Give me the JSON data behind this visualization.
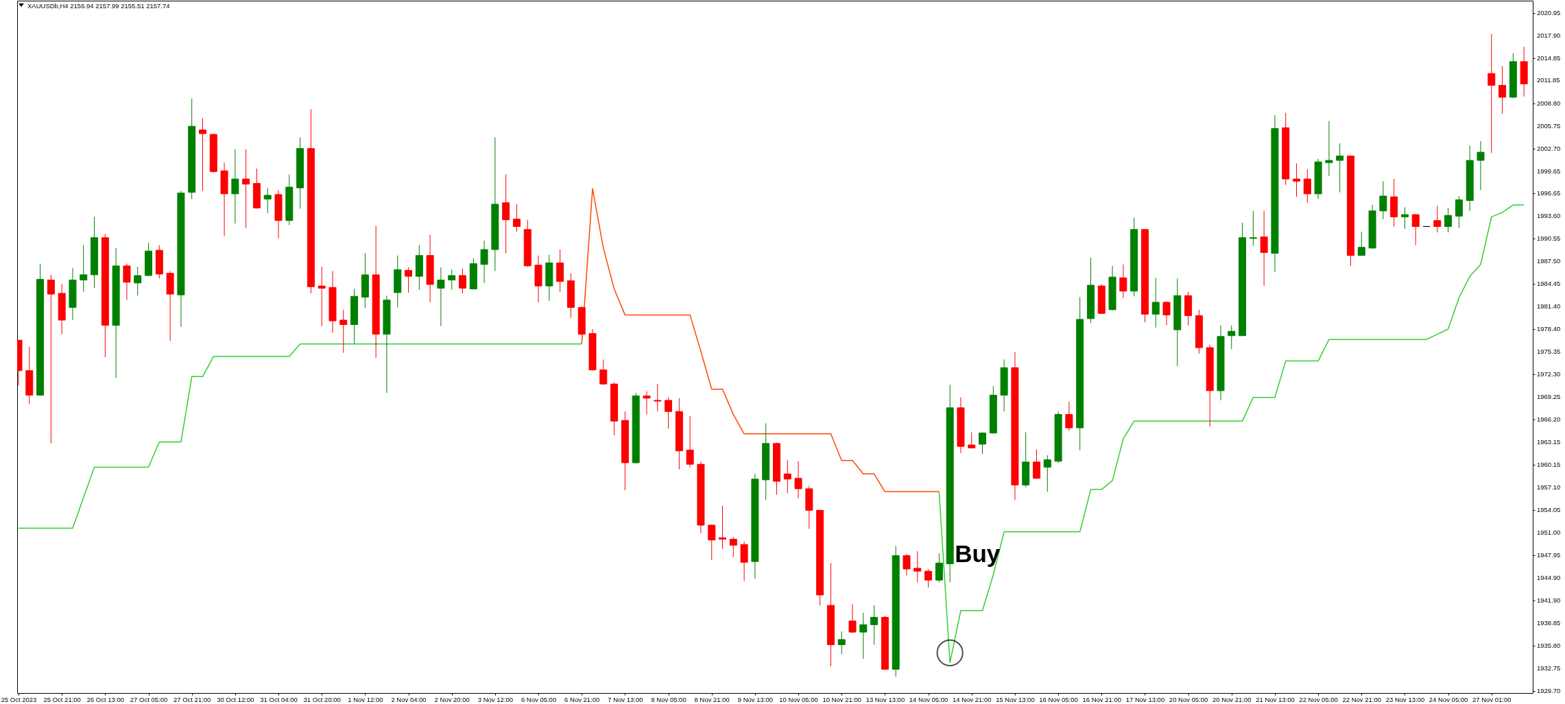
{
  "chart_data": {
    "type": "candlestick",
    "title": "XAUUSDb,H4 2156.94 2157.99 2155.51 2157.74",
    "categories": [
      "25 Oct 2023",
      null,
      null,
      null,
      "25 Oct 21:00",
      null,
      null,
      null,
      "26 Oct 13:00",
      null,
      null,
      null,
      "27 Oct 05:00",
      null,
      null,
      null,
      "27 Oct 21:00",
      null,
      null,
      null,
      "30 Oct 12:00",
      null,
      null,
      null,
      "31 Oct 04:00",
      null,
      null,
      null,
      "31 Oct 20:00",
      null,
      null,
      null,
      "1 Nov 12:00",
      null,
      null,
      null,
      "2 Nov 04:00",
      null,
      null,
      null,
      "2 Nov 20:00",
      null,
      null,
      null,
      "3 Nov 12:00",
      null,
      null,
      null,
      "6 Nov 05:00",
      null,
      null,
      null,
      "6 Nov 21:00",
      null,
      null,
      null,
      "7 Nov 13:00",
      null,
      null,
      null,
      "8 Nov 05:00",
      null,
      null,
      null,
      "8 Nov 21:00",
      null,
      null,
      null,
      "9 Nov 13:00",
      null,
      null,
      null,
      "10 Nov 05:00",
      null,
      null,
      null,
      "10 Nov 21:00",
      null,
      null,
      null,
      "13 Nov 13:00",
      null,
      null,
      null,
      "14 Nov 05:00",
      null,
      null,
      null,
      "14 Nov 21:00",
      null,
      null,
      null,
      "15 Nov 13:00",
      null,
      null,
      null,
      "16 Nov 05:00",
      null,
      null,
      null,
      "16 Nov 21:00",
      null,
      null,
      null,
      "17 Nov 13:00",
      null,
      null,
      null,
      "20 Nov 05:00",
      null,
      null,
      null,
      "20 Nov 21:00",
      null,
      null,
      null,
      "21 Nov 13:00",
      null,
      null,
      null,
      "22 Nov 05:00",
      null,
      null,
      null,
      "22 Nov 21:00",
      null,
      null,
      null,
      "23 Nov 13:00",
      null,
      null,
      null,
      "24 Nov 05:00",
      null,
      null,
      null,
      "27 Nov 01:00",
      null,
      null,
      null
    ],
    "ohlc": [
      [
        1976.9,
        1976.9,
        1970.8,
        1972.8
      ],
      [
        1972.8,
        1976.0,
        1968.3,
        1969.5
      ],
      [
        1969.5,
        1987.2,
        1969.4,
        1985.1
      ],
      [
        1985.0,
        1985.7,
        1963.0,
        1983.1
      ],
      [
        1983.2,
        1984.5,
        1977.7,
        1979.6
      ],
      [
        1981.3,
        1986.6,
        1979.6,
        1985.0
      ],
      [
        1985.0,
        1989.7,
        1983.4,
        1985.7
      ],
      [
        1985.7,
        1993.5,
        1983.9,
        1990.7
      ],
      [
        1990.7,
        1991.2,
        1974.6,
        1978.9
      ],
      [
        1978.9,
        1989.3,
        1971.8,
        1986.9
      ],
      [
        1986.9,
        1987.2,
        1982.3,
        1984.7
      ],
      [
        1984.6,
        1986.8,
        1982.9,
        1985.6
      ],
      [
        1985.6,
        1990.0,
        1985.5,
        1988.9
      ],
      [
        1989.0,
        1989.7,
        1985.2,
        1985.8
      ],
      [
        1985.9,
        1986.2,
        1976.8,
        1983.1
      ],
      [
        1983.0,
        1997.0,
        1978.7,
        1996.7
      ],
      [
        1996.8,
        2009.4,
        1995.9,
        2005.7
      ],
      [
        2005.2,
        2006.8,
        1997.0,
        2004.7
      ],
      [
        2004.6,
        2004.7,
        1999.4,
        1999.6
      ],
      [
        1999.7,
        2000.8,
        1990.9,
        1996.6
      ],
      [
        1996.6,
        2002.6,
        1992.6,
        1998.6
      ],
      [
        1998.6,
        2002.6,
        1992.0,
        1997.9
      ],
      [
        1998.0,
        2000.0,
        1994.6,
        1994.7
      ],
      [
        1995.9,
        1997.4,
        1994.0,
        1996.4
      ],
      [
        1996.5,
        1997.1,
        1990.6,
        1993.0
      ],
      [
        1993.0,
        1999.2,
        1992.4,
        1997.5
      ],
      [
        1997.4,
        2004.2,
        1994.6,
        2002.7
      ],
      [
        2002.7,
        2008.0,
        1983.2,
        1984.1
      ],
      [
        1984.2,
        1986.8,
        1978.8,
        1983.9
      ],
      [
        1984.0,
        1986.2,
        1977.9,
        1979.5
      ],
      [
        1979.6,
        1981.0,
        1975.2,
        1979.0
      ],
      [
        1979.0,
        1983.8,
        1976.4,
        1982.8
      ],
      [
        1982.7,
        1988.6,
        1981.2,
        1985.7
      ],
      [
        1985.7,
        1992.3,
        1974.5,
        1977.7
      ],
      [
        1977.7,
        1982.9,
        1969.8,
        1982.3
      ],
      [
        1983.3,
        1988.3,
        1981.3,
        1986.4
      ],
      [
        1986.3,
        1986.7,
        1983.3,
        1985.5
      ],
      [
        1985.5,
        1989.7,
        1983.7,
        1988.3
      ],
      [
        1988.3,
        1991.1,
        1982.0,
        1984.4
      ],
      [
        1983.9,
        1986.7,
        1978.8,
        1985.0
      ],
      [
        1985.0,
        1986.4,
        1983.7,
        1985.6
      ],
      [
        1985.6,
        1986.5,
        1983.2,
        1983.9
      ],
      [
        1983.8,
        1987.9,
        1983.7,
        1987.2
      ],
      [
        1987.1,
        1990.3,
        1984.6,
        1989.1
      ],
      [
        1989.1,
        2004.2,
        1986.2,
        1995.2
      ],
      [
        1995.4,
        1999.2,
        1988.6,
        1993.1
      ],
      [
        1993.2,
        1995.2,
        1991.5,
        1992.2
      ],
      [
        1991.8,
        1993.1,
        1986.8,
        1986.9
      ],
      [
        1987.0,
        1988.3,
        1982.0,
        1984.2
      ],
      [
        1984.2,
        1988.4,
        1982.2,
        1987.3
      ],
      [
        1987.3,
        1989.1,
        1983.4,
        1984.8
      ],
      [
        1984.9,
        1985.9,
        1979.9,
        1981.3
      ],
      [
        1981.3,
        1981.5,
        1977.6,
        1977.7
      ],
      [
        1977.8,
        1978.4,
        1972.8,
        1972.9
      ],
      [
        1972.9,
        1974.3,
        1970.9,
        1971.0
      ],
      [
        1971.0,
        1971.2,
        1964.1,
        1966.0
      ],
      [
        1966.1,
        1967.3,
        1956.7,
        1960.4
      ],
      [
        1960.4,
        1969.8,
        1960.3,
        1969.4
      ],
      [
        1969.4,
        1970.0,
        1966.9,
        1969.1
      ],
      [
        1968.8,
        1971.0,
        1967.3,
        1968.7
      ],
      [
        1968.8,
        1969.2,
        1965.0,
        1967.3
      ],
      [
        1967.3,
        1969.1,
        1959.5,
        1962.0
      ],
      [
        1962.1,
        1966.7,
        1959.8,
        1960.2
      ],
      [
        1960.2,
        1960.6,
        1950.9,
        1952.0
      ],
      [
        1952.0,
        1952.1,
        1947.3,
        1950.0
      ],
      [
        1950.3,
        1954.6,
        1948.8,
        1950.1
      ],
      [
        1950.1,
        1950.4,
        1947.7,
        1949.3
      ],
      [
        1949.4,
        1949.8,
        1944.5,
        1947.0
      ],
      [
        1947.1,
        1958.9,
        1944.8,
        1958.2
      ],
      [
        1958.1,
        1965.7,
        1955.4,
        1963.0
      ],
      [
        1963.0,
        1963.1,
        1956.1,
        1957.9
      ],
      [
        1958.9,
        1960.8,
        1956.3,
        1958.2
      ],
      [
        1958.3,
        1960.6,
        1955.6,
        1956.9
      ],
      [
        1956.9,
        1957.3,
        1951.5,
        1954.0
      ],
      [
        1954.0,
        1954.1,
        1941.2,
        1942.6
      ],
      [
        1941.2,
        1946.9,
        1933.0,
        1935.9
      ],
      [
        1935.9,
        1937.7,
        1934.6,
        1936.6
      ],
      [
        1939.1,
        1941.4,
        1937.5,
        1937.6
      ],
      [
        1937.6,
        1940.2,
        1934.0,
        1938.6
      ],
      [
        1938.6,
        1941.2,
        1935.9,
        1939.6
      ],
      [
        1939.6,
        1939.8,
        1932.5,
        1932.6
      ],
      [
        1932.6,
        1949.2,
        1931.6,
        1947.9
      ],
      [
        1947.9,
        1948.1,
        1945.2,
        1946.1
      ],
      [
        1946.2,
        1948.5,
        1944.3,
        1945.8
      ],
      [
        1945.8,
        1946.1,
        1943.6,
        1944.6
      ],
      [
        1944.6,
        1948.2,
        1944.3,
        1946.9
      ],
      [
        1946.8,
        1970.9,
        1944.3,
        1967.8
      ],
      [
        1967.8,
        1969.2,
        1961.7,
        1962.6
      ],
      [
        1962.8,
        1964.5,
        1962.3,
        1962.4
      ],
      [
        1962.9,
        1964.5,
        1961.6,
        1964.4
      ],
      [
        1964.4,
        1970.7,
        1964.3,
        1969.5
      ],
      [
        1969.5,
        1974.3,
        1967.3,
        1973.2
      ],
      [
        1973.2,
        1975.3,
        1955.4,
        1957.4
      ],
      [
        1957.4,
        1964.5,
        1957.1,
        1960.5
      ],
      [
        1960.5,
        1962.2,
        1958.2,
        1958.3
      ],
      [
        1959.8,
        1961.4,
        1956.5,
        1960.8
      ],
      [
        1960.6,
        1967.3,
        1960.4,
        1966.9
      ],
      [
        1966.9,
        1968.6,
        1964.7,
        1965.1
      ],
      [
        1965.1,
        1982.7,
        1962.1,
        1979.7
      ],
      [
        1979.8,
        1988.0,
        1979.2,
        1984.3
      ],
      [
        1984.2,
        1984.4,
        1980.5,
        1980.5
      ],
      [
        1981.0,
        1986.9,
        1980.9,
        1985.4
      ],
      [
        1985.3,
        1987.1,
        1982.6,
        1983.5
      ],
      [
        1983.5,
        1993.4,
        1982.8,
        1991.8
      ],
      [
        1991.8,
        1991.8,
        1979.3,
        1980.4
      ],
      [
        1980.4,
        1985.3,
        1978.6,
        1982.0
      ],
      [
        1982.0,
        1982.1,
        1978.9,
        1980.3
      ],
      [
        1978.3,
        1985.2,
        1973.4,
        1982.9
      ],
      [
        1982.9,
        1983.4,
        1978.9,
        1980.2
      ],
      [
        1980.2,
        1981.0,
        1975.1,
        1975.9
      ],
      [
        1975.9,
        1976.3,
        1965.3,
        1970.1
      ],
      [
        1970.1,
        1978.9,
        1968.8,
        1977.4
      ],
      [
        1977.5,
        1978.9,
        1975.7,
        1978.1
      ],
      [
        1977.5,
        1992.7,
        1977.5,
        1990.7
      ],
      [
        1990.6,
        1994.3,
        1989.6,
        1990.7
      ],
      [
        1990.8,
        1994.3,
        1984.2,
        1988.7
      ],
      [
        1988.6,
        2007.2,
        1986.1,
        2005.4
      ],
      [
        2005.5,
        2007.5,
        1997.8,
        1998.6
      ],
      [
        1998.6,
        2000.7,
        1996.2,
        1998.3
      ],
      [
        1998.6,
        1999.9,
        1995.4,
        1996.6
      ],
      [
        1996.6,
        2001.3,
        1995.9,
        2000.9
      ],
      [
        2000.8,
        2006.4,
        1999.0,
        2001.1
      ],
      [
        2001.1,
        2003.4,
        1996.8,
        2001.7
      ],
      [
        2001.7,
        2001.7,
        1986.9,
        1988.3
      ],
      [
        1988.3,
        1991.5,
        1988.3,
        1989.4
      ],
      [
        1989.3,
        1995.1,
        1989.2,
        1994.3
      ],
      [
        1994.3,
        1998.3,
        1993.2,
        1996.3
      ],
      [
        1996.2,
        1998.6,
        1992.2,
        1993.5
      ],
      [
        1993.5,
        1994.8,
        1991.9,
        1993.8
      ],
      [
        1993.8,
        1993.9,
        1989.7,
        1992.2
      ],
      [
        1992.2,
        1992.2,
        1992.2,
        1992.2
      ],
      [
        1993.0,
        1995.0,
        1991.4,
        1992.2
      ],
      [
        1992.2,
        1994.7,
        1991.4,
        1993.7
      ],
      [
        1993.6,
        1996.3,
        1992.0,
        1995.8
      ],
      [
        1995.7,
        2003.1,
        1994.3,
        2001.1
      ],
      [
        2001.1,
        2003.7,
        1997.1,
        2002.2
      ],
      [
        2012.8,
        2018.1,
        2002.1,
        2011.2
      ],
      [
        2011.2,
        2013.8,
        2007.4,
        2009.6
      ],
      [
        2009.6,
        2015.5,
        2009.5,
        2014.4
      ],
      [
        2014.4,
        2016.4,
        2009.7,
        2011.4
      ]
    ],
    "colors": [
      "#ff0000",
      "#ff0000",
      "#008000",
      "#ff0000",
      "#ff0000",
      "#008000",
      "#008000",
      "#008000",
      "#ff0000",
      "#008000",
      "#ff0000",
      "#008000",
      "#008000",
      "#ff0000",
      "#ff0000",
      "#008000",
      "#008000",
      "#ff0000",
      "#ff0000",
      "#ff0000",
      "#008000",
      "#ff0000",
      "#ff0000",
      "#008000",
      "#ff0000",
      "#008000",
      "#008000",
      "#ff0000",
      "#ff0000",
      "#ff0000",
      "#ff0000",
      "#008000",
      "#008000",
      "#ff0000",
      "#008000",
      "#008000",
      "#ff0000",
      "#008000",
      "#ff0000",
      "#008000",
      "#008000",
      "#ff0000",
      "#008000",
      "#008000",
      "#008000",
      "#ff0000",
      "#ff0000",
      "#ff0000",
      "#ff0000",
      "#008000",
      "#ff0000",
      "#ff0000",
      "#ff0000",
      "#ff0000",
      "#ff0000",
      "#ff0000",
      "#ff0000",
      "#008000",
      "#ff0000",
      "#ff0000",
      "#ff0000",
      "#ff0000",
      "#ff0000",
      "#ff0000",
      "#ff0000",
      "#ff0000",
      "#ff0000",
      "#ff0000",
      "#008000",
      "#008000",
      "#ff0000",
      "#ff0000",
      "#ff0000",
      "#ff0000",
      "#ff0000",
      "#ff0000",
      "#008000",
      "#ff0000",
      "#008000",
      "#008000",
      "#ff0000",
      "#008000",
      "#ff0000",
      "#ff0000",
      "#ff0000",
      "#008000",
      "#008000",
      "#ff0000",
      "#ff0000",
      "#008000",
      "#008000",
      "#008000",
      "#ff0000",
      "#008000",
      "#ff0000",
      "#008000",
      "#008000",
      "#ff0000",
      "#008000",
      "#008000",
      "#ff0000",
      "#008000",
      "#ff0000",
      "#008000",
      "#ff0000",
      "#008000",
      "#ff0000",
      "#008000",
      "#ff0000",
      "#ff0000",
      "#ff0000",
      "#008000",
      "#008000",
      "#008000",
      "#008000",
      "#ff0000",
      "#008000",
      "#ff0000",
      "#ff0000",
      "#ff0000",
      "#008000",
      "#008000",
      "#008000",
      "#ff0000",
      "#008000",
      "#008000",
      "#008000",
      "#ff0000",
      "#008000",
      "#ff0000",
      "#000000",
      "#ff0000",
      "#008000",
      "#008000",
      "#008000",
      "#008000",
      "#ff0000",
      "#ff0000",
      "#008000",
      "#ff0000"
    ],
    "series": [
      {
        "type": "line",
        "color": "#32cd32",
        "values": [
          1951.6,
          1951.6,
          1951.6,
          1951.6,
          1951.6,
          1951.6,
          1955.7,
          1959.8,
          1959.8,
          1959.8,
          1959.8,
          1959.8,
          1959.8,
          1963.2,
          1963.2,
          1963.2,
          1972.0,
          1972.0,
          1974.7,
          1974.7,
          1974.7,
          1974.7,
          1974.7,
          1974.7,
          1974.7,
          1974.7,
          1976.4,
          1976.4,
          1976.4,
          1976.4,
          1976.4,
          1976.4,
          1976.4,
          1976.4,
          1976.4,
          1976.4,
          1976.4,
          1976.4,
          1976.4,
          1976.4,
          1976.4,
          1976.4,
          1976.4,
          1976.4,
          1976.4,
          1976.4,
          1976.4,
          1976.4,
          1976.4,
          1976.4,
          1976.4,
          1976.4,
          1976.4,
          null,
          null,
          null,
          null,
          null,
          null,
          null,
          null,
          null,
          null,
          null,
          null,
          null,
          null,
          null,
          null,
          null,
          null,
          null,
          null,
          null,
          null,
          null,
          null,
          null,
          null,
          null,
          null,
          null,
          null,
          null,
          null,
          1956.5,
          1933.5,
          1940.5,
          1940.5,
          1940.5,
          1945.3,
          1951.1,
          1951.1,
          1951.1,
          1951.1,
          1951.1,
          1951.1,
          1951.1,
          1951.1,
          1956.8,
          1956.8,
          1958.0,
          1963.6,
          1966.0,
          1966.0,
          1966.0,
          1966.0,
          1966.0,
          1966.0,
          1966.0,
          1966.0,
          1966.0,
          1966.0,
          1966.0,
          1969.2,
          1969.2,
          1969.2,
          1974.1,
          1974.1,
          1974.1,
          1974.1,
          1977.0,
          1977.0,
          1977.0,
          1977.0,
          1977.0,
          1977.0,
          1977.0,
          1977.0,
          1977.0,
          1977.0,
          1977.7,
          1978.4,
          1982.6,
          1985.5,
          1987.1,
          1993.5,
          1994.1,
          1995.1,
          1995.1
        ]
      },
      {
        "type": "line",
        "color": "#ff4500",
        "values": [
          null,
          null,
          null,
          null,
          null,
          null,
          null,
          null,
          null,
          null,
          null,
          null,
          null,
          null,
          null,
          null,
          null,
          null,
          null,
          null,
          null,
          null,
          null,
          null,
          null,
          null,
          null,
          null,
          null,
          null,
          null,
          null,
          null,
          null,
          null,
          null,
          null,
          null,
          null,
          null,
          null,
          null,
          null,
          null,
          null,
          null,
          null,
          null,
          null,
          null,
          null,
          null,
          1976.4,
          1997.3,
          1989.3,
          1983.8,
          1980.3,
          1980.3,
          1980.3,
          1980.3,
          1980.3,
          1980.3,
          1980.3,
          1975.4,
          1970.3,
          1970.3,
          1966.9,
          1964.3,
          1964.3,
          1964.3,
          1964.3,
          1964.3,
          1964.3,
          1964.3,
          1964.3,
          1964.3,
          1960.7,
          1960.7,
          1958.9,
          1958.9,
          1956.5,
          1956.5,
          1956.5,
          1956.5,
          1956.5,
          1956.5,
          null,
          null,
          null,
          null,
          null,
          null,
          null,
          null,
          null,
          null,
          null,
          null,
          null,
          null,
          null,
          null,
          null,
          null,
          null,
          null,
          null,
          null,
          null,
          null,
          null,
          null,
          null,
          null,
          null,
          null,
          null,
          null,
          null,
          null,
          null,
          null,
          null,
          null,
          null,
          null,
          null,
          null,
          null,
          null,
          null,
          null,
          null,
          null,
          null,
          null,
          null,
          null,
          null,
          null
        ]
      },
      {
        "type": "scatter",
        "color": "#000000",
        "marker": "circle",
        "values": [
          null,
          null,
          null,
          null,
          null,
          null,
          null,
          null,
          null,
          null,
          null,
          null,
          null,
          null,
          null,
          null,
          null,
          null,
          null,
          null,
          null,
          null,
          null,
          null,
          null,
          null,
          null,
          null,
          null,
          null,
          null,
          null,
          null,
          null,
          null,
          null,
          null,
          null,
          null,
          null,
          null,
          null,
          null,
          null,
          null,
          null,
          null,
          null,
          null,
          null,
          null,
          null,
          null,
          null,
          null,
          null,
          null,
          null,
          null,
          null,
          null,
          null,
          null,
          null,
          null,
          null,
          null,
          null,
          null,
          null,
          null,
          null,
          null,
          null,
          null,
          null,
          null,
          null,
          null,
          null,
          null,
          null,
          null,
          null,
          null,
          null,
          1934.8,
          null,
          null,
          null,
          null,
          null,
          null,
          null,
          null,
          null,
          null,
          null,
          null,
          null,
          null,
          null,
          null,
          null,
          null,
          null,
          null,
          null,
          null,
          null,
          null,
          null,
          null,
          null,
          null,
          null,
          null,
          null,
          null,
          null,
          null,
          null,
          null,
          null,
          null,
          null,
          null,
          null,
          null,
          null,
          null,
          null,
          null,
          null,
          null,
          null,
          null,
          null,
          null,
          null
        ]
      }
    ],
    "ylim": [
      1929.4,
      2022.6
    ],
    "yticks": [
      {
        "value": 1929.7,
        "label": "1929.70"
      },
      1932.75,
      {
        "value": 1935.8,
        "label": "1935.80"
      },
      1938.85,
      {
        "value": 1941.9,
        "label": "1941.90"
      },
      {
        "value": 1944.9,
        "label": "1944.90"
      },
      1947.95,
      {
        "value": 1951,
        "label": "1951.00"
      },
      1954.05,
      {
        "value": 1957.1,
        "label": "1957.10"
      },
      1960.15,
      1963.15,
      {
        "value": 1966.2,
        "label": "1966.20"
      },
      1969.25,
      {
        "value": 1972.3,
        "label": "1972.30"
      },
      1975.35,
      {
        "value": 1978.4,
        "label": "1978.40"
      },
      {
        "value": 1981.4,
        "label": "1981.40"
      },
      1984.45,
      {
        "value": 1987.5,
        "label": "1987.50"
      },
      1990.55,
      {
        "value": 1993.6,
        "label": "1993.60"
      },
      1996.65,
      1999.65,
      {
        "value": 2002.7,
        "label": "2002.70"
      },
      2005.75,
      {
        "value": 2008.8,
        "label": "2008.80"
      },
      2011.85,
      2014.85,
      {
        "value": 2017.9,
        "label": "2017.90"
      },
      2020.95
    ],
    "annotations": [
      "Buy"
    ]
  }
}
